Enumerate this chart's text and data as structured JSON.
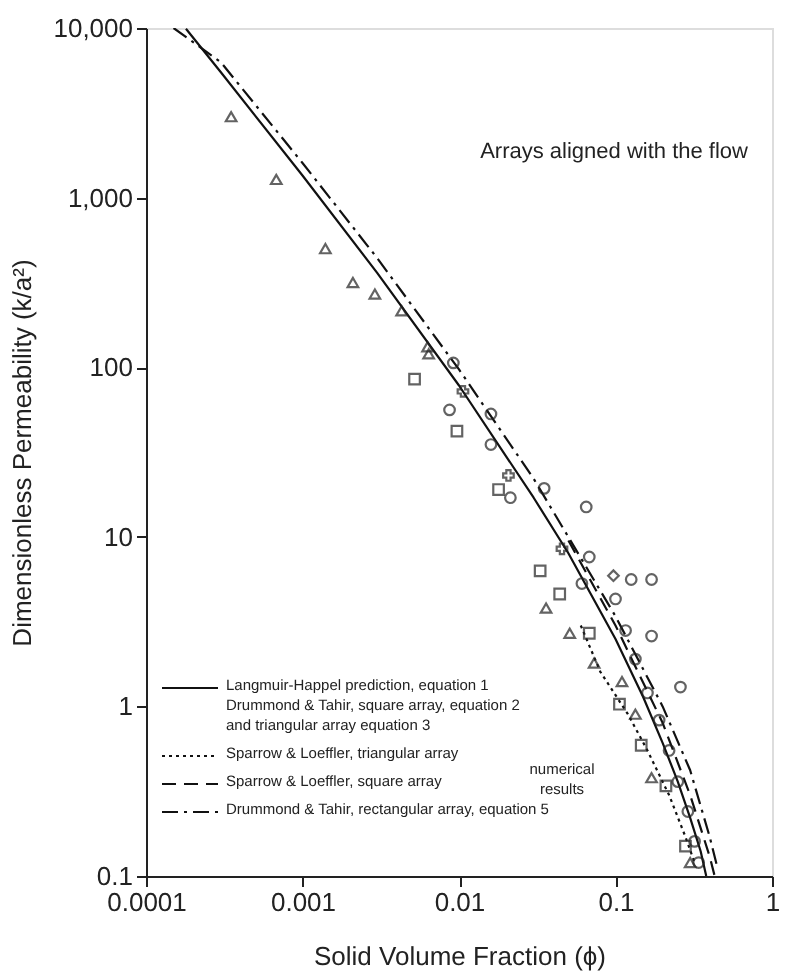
{
  "chart_data": {
    "type": "line",
    "xlabel": "Solid Volume Fraction (ϕ)",
    "ylabel": "Dimensionless Permeability (k/a²)",
    "log": "xy",
    "grid": false,
    "legend": "bottom left",
    "xlim": [
      0.0001,
      1
    ],
    "xticks": [
      0.0001,
      0.001,
      0.01,
      0.1,
      1
    ],
    "ylim": [
      0.1,
      10000
    ],
    "yticks": [
      0.1,
      1,
      10,
      100,
      {
        "value": 1000,
        "label": "1,000"
      },
      {
        "value": 10000,
        "label": "10,000"
      }
    ],
    "annotations": [
      "Arrays aligned with the flow",
      "numerical results"
    ],
    "series": [
      {
        "type": "line",
        "name": "Langmuir-Happel prediction, equation 1\nDrummond & Tahir, square array, equation 2\nand triangular array equation 3",
        "color": "#111111",
        "line_style": "solid",
        "x": [
          0.00018,
          0.0003,
          0.001,
          0.003,
          0.01,
          0.03,
          0.05,
          0.1,
          0.15,
          0.2,
          0.25,
          0.3,
          0.35,
          0.38
        ],
        "values": [
          9900,
          5500,
          1350,
          360,
          78,
          17,
          8,
          2.5,
          1.14,
          0.61,
          0.36,
          0.22,
          0.14,
          0.1
        ]
      },
      {
        "type": "line",
        "name": "Sparrow & Loeffler, triangular array",
        "color": "#111111",
        "line_style": "dotted",
        "x": [
          0.06,
          0.08,
          0.12,
          0.16,
          0.22,
          0.28,
          0.32
        ],
        "values": [
          3.0,
          1.6,
          0.9,
          0.55,
          0.3,
          0.17,
          0.12
        ]
      },
      {
        "type": "line",
        "name": "Sparrow & Loeffler, square array",
        "color": "#111111",
        "line_style": "dashed",
        "x": [
          0.05,
          0.1,
          0.2,
          0.3,
          0.4,
          0.43
        ],
        "values": [
          9.5,
          3.0,
          0.8,
          0.3,
          0.13,
          0.1
        ]
      },
      {
        "type": "line",
        "name": "Drummond & Tahir, rectangular array, equation 5",
        "color": "#111111",
        "line_style": "dashdot",
        "x": [
          0.00015,
          0.0003,
          0.001,
          0.003,
          0.01,
          0.03,
          0.1,
          0.2,
          0.3,
          0.4,
          0.45
        ],
        "values": [
          10000,
          6300,
          1600,
          440,
          97,
          22,
          3.4,
          1.0,
          0.42,
          0.17,
          0.11
        ]
      },
      {
        "type": "scatter",
        "color": "#222222",
        "marker": "triangle",
        "x": [
          0.00035,
          0.00068,
          0.0014,
          0.0021,
          0.0029,
          0.0043,
          0.0063,
          0.0064,
          0.036,
          0.051,
          0.073,
          0.11,
          0.134,
          0.17,
          0.3
        ],
        "values": [
          3000,
          1280,
          500,
          316,
          270,
          215,
          132,
          120,
          3.8,
          2.7,
          1.8,
          1.4,
          0.9,
          0.38,
          0.12
        ]
      },
      {
        "type": "scatter",
        "color": "#222222",
        "marker": "square",
        "x": [
          0.0052,
          0.0097,
          0.0179,
          0.033,
          0.044,
          0.068,
          0.106,
          0.146,
          0.21,
          0.28
        ],
        "values": [
          85,
          42,
          19,
          6.3,
          4.6,
          2.7,
          1.03,
          0.59,
          0.34,
          0.15
        ]
      },
      {
        "type": "scatter",
        "color": "#222222",
        "marker": "circle",
        "x": [
          0.0092,
          0.0087,
          0.016,
          0.016,
          0.0213,
          0.035,
          0.065,
          0.068,
          0.126,
          0.061,
          0.17,
          0.17,
          0.26,
          0.1,
          0.116,
          0.134,
          0.16,
          0.19,
          0.22,
          0.25,
          0.29,
          0.32,
          0.34
        ],
        "values": [
          106,
          56,
          53,
          35,
          17,
          19.3,
          15,
          7.6,
          5.6,
          5.3,
          5.6,
          2.6,
          1.3,
          4.3,
          2.8,
          1.9,
          1.2,
          0.83,
          0.55,
          0.36,
          0.24,
          0.16,
          0.12
        ]
      },
      {
        "type": "scatter",
        "color": "#222222",
        "marker": "cross",
        "x": [
          0.0106,
          0.0207,
          0.0455
        ],
        "values": [
          72,
          23,
          8.5
        ]
      },
      {
        "type": "scatter",
        "color": "#222222",
        "marker": "diamond",
        "x": [
          0.097
        ],
        "values": [
          5.9
        ]
      }
    ]
  }
}
